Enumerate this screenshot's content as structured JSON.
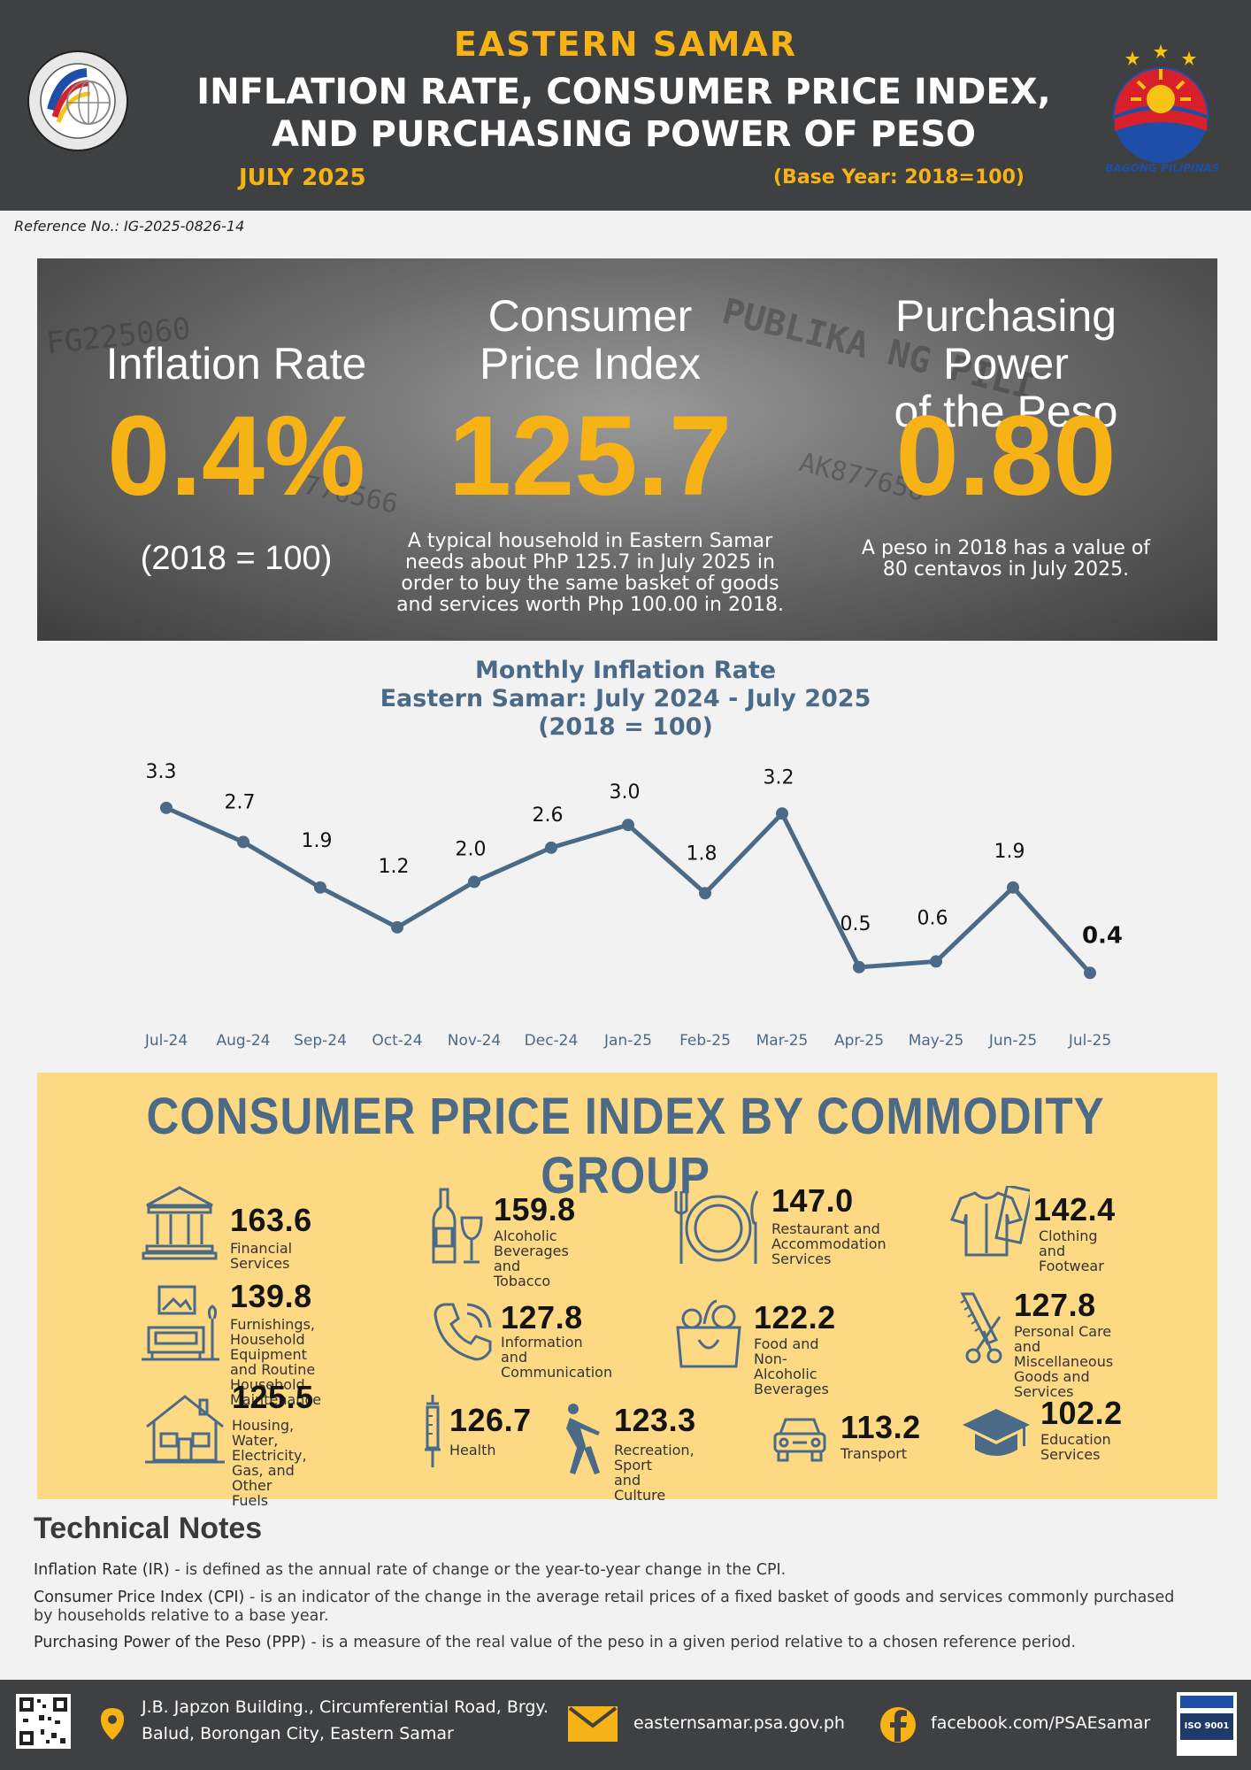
{
  "header": {
    "region": "EASTERN SAMAR",
    "title_line1": "INFLATION RATE, CONSUMER PRICE INDEX,",
    "title_line2": "AND PURCHASING POWER OF PESO",
    "period": "JULY 2025",
    "base_year": "(Base Year: 2018=100)",
    "right_logo_text": "BAGONG PILIPINAS"
  },
  "reference": "Reference No.: IG-2025-0826-14",
  "banner": {
    "inflation": {
      "heading": "Inflation Rate",
      "value": "0.4%",
      "note": "(2018 = 100)"
    },
    "cpi": {
      "heading_line1": "Consumer",
      "heading_line2": "Price Index",
      "value": "125.7",
      "note_line1": "A typical household in Eastern Samar",
      "note_line2": "needs about PhP 125.7 in July 2025 in",
      "note_line3": "order to buy the same basket of goods",
      "note_line4": "and services worth Php 100.00 in 2018."
    },
    "ppp": {
      "heading_line1": "Purchasing Power",
      "heading_line2": "of the Peso",
      "value": "0.80",
      "note_line1": "A peso in 2018 has a value of",
      "note_line2": "80 centavos in July 2025."
    }
  },
  "chart_data": {
    "type": "line",
    "title_line1": "Monthly Inflation Rate",
    "title_line2": "Eastern Samar: July 2024 - July 2025",
    "title_line3": "(2018 = 100)",
    "categories": [
      "Jul-24",
      "Aug-24",
      "Sep-24",
      "Oct-24",
      "Nov-24",
      "Dec-24",
      "Jan-25",
      "Feb-25",
      "Mar-25",
      "Apr-25",
      "May-25",
      "Jun-25",
      "Jul-25"
    ],
    "values": [
      3.3,
      2.7,
      1.9,
      1.2,
      2.0,
      2.6,
      3.0,
      1.8,
      3.2,
      0.5,
      0.6,
      1.9,
      0.4
    ],
    "labels": [
      "3.3",
      "2.7",
      "1.9",
      "1.2",
      "2.0",
      "2.6",
      "3.0",
      "1.8",
      "3.2",
      "0.5",
      "0.6",
      "1.9",
      "0.4"
    ],
    "ylim": [
      0,
      3.5
    ],
    "grid": false,
    "line_color": "#4a6a88"
  },
  "cpi_section": {
    "title": "CONSUMER PRICE INDEX BY COMMODITY GROUP",
    "items": [
      {
        "icon": "bank-icon",
        "value": "163.6",
        "label": "Financial Services"
      },
      {
        "icon": "wine-bottle-icon",
        "value": "159.8",
        "label": "Alcoholic Beverages\nand Tobacco"
      },
      {
        "icon": "plate-cutlery-icon",
        "value": "147.0",
        "label": "Restaurant and\nAccommodation\nServices"
      },
      {
        "icon": "shirt-icon",
        "value": "142.4",
        "label": "Clothing\nand Footwear"
      },
      {
        "icon": "furniture-icon",
        "value": "139.8",
        "label": "Furnishings, Household\nEquipment and Routine\nHousehold Maintenance"
      },
      {
        "icon": "phone-icon",
        "value": "127.8",
        "label": "Information and\nCommunication"
      },
      {
        "icon": "grocery-bag-icon",
        "value": "122.2",
        "label": "Food and  Non-Alcoholic\nBeverages"
      },
      {
        "icon": "comb-scissors-icon",
        "value": "127.8",
        "label": "Personal Care\nand Miscellaneous\nGoods and Services"
      },
      {
        "icon": "house-icon",
        "value": "125.5",
        "label": "Housing, Water,\nElectricity, Gas, and\nOther Fuels"
      },
      {
        "icon": "syringe-icon",
        "value": "126.7",
        "label": "Health"
      },
      {
        "icon": "stretching-person-icon",
        "value": "123.3",
        "label": "Recreation, Sport\nand Culture"
      },
      {
        "icon": "car-icon",
        "value": "113.2",
        "label": "Transport"
      },
      {
        "icon": "graduation-cap-icon",
        "value": "102.2",
        "label": "Education\nServices"
      }
    ]
  },
  "technical_notes": {
    "title": "Technical Notes",
    "ir_term": "Inflation Rate (IR)",
    "ir_text": " - is defined as the annual rate of change or the year-to-year change in the CPI.",
    "cpi_term": "Consumer Price Index (CPI)",
    "cpi_text": " - is an indicator of the change in the average retail prices of a fixed basket of goods and services commonly purchased by households relative to a base year.",
    "ppp_term": "Purchasing Power of the Peso (PPP)",
    "ppp_text": " - is a measure of the real value of the peso in a given period relative to a chosen reference period."
  },
  "footer": {
    "address_line1": "J.B. Japzon Building., Circumferential Road, Brgy.",
    "address_line2": "Balud, Borongan City, Eastern Samar",
    "email": "easternsamar.psa.gov.ph",
    "facebook": "facebook.com/PSAEsamar",
    "iso": "ISO 9001"
  },
  "colors": {
    "header_bg": "#3f4042",
    "accent_yellow": "#f7b216",
    "chart_blue": "#4a6a88",
    "cpi_panel": "#fed983"
  }
}
